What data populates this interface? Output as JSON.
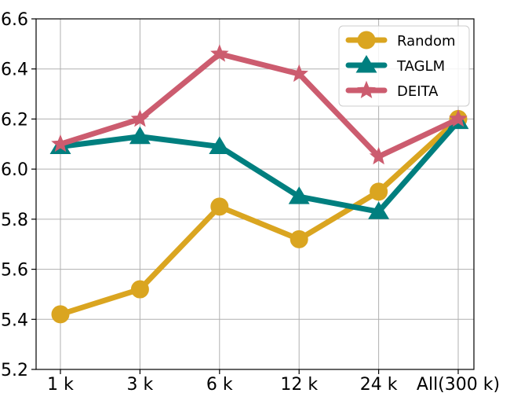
{
  "chart_data": {
    "type": "line",
    "categories": [
      "1 k",
      "3 k",
      "6 k",
      "12 k",
      "24 k",
      "All(300 k)"
    ],
    "ylim": [
      5.2,
      6.6
    ],
    "yticks": [
      "5.2",
      "5.4",
      "5.6",
      "5.8",
      "6.0",
      "6.2",
      "6.4",
      "6.6"
    ],
    "grid": true,
    "legend_position": "top-right",
    "series": [
      {
        "name": "Random",
        "color": "#DAA520",
        "marker": "circle",
        "values": [
          5.42,
          5.52,
          5.85,
          5.72,
          5.91,
          6.2
        ]
      },
      {
        "name": "TAGLM",
        "color": "#007F7F",
        "marker": "triangle",
        "values": [
          6.09,
          6.13,
          6.09,
          5.89,
          5.83,
          6.19
        ]
      },
      {
        "name": "DEITA",
        "color": "#CC5C6F",
        "marker": "star",
        "values": [
          6.1,
          6.2,
          6.46,
          6.38,
          6.05,
          6.2
        ]
      }
    ]
  }
}
